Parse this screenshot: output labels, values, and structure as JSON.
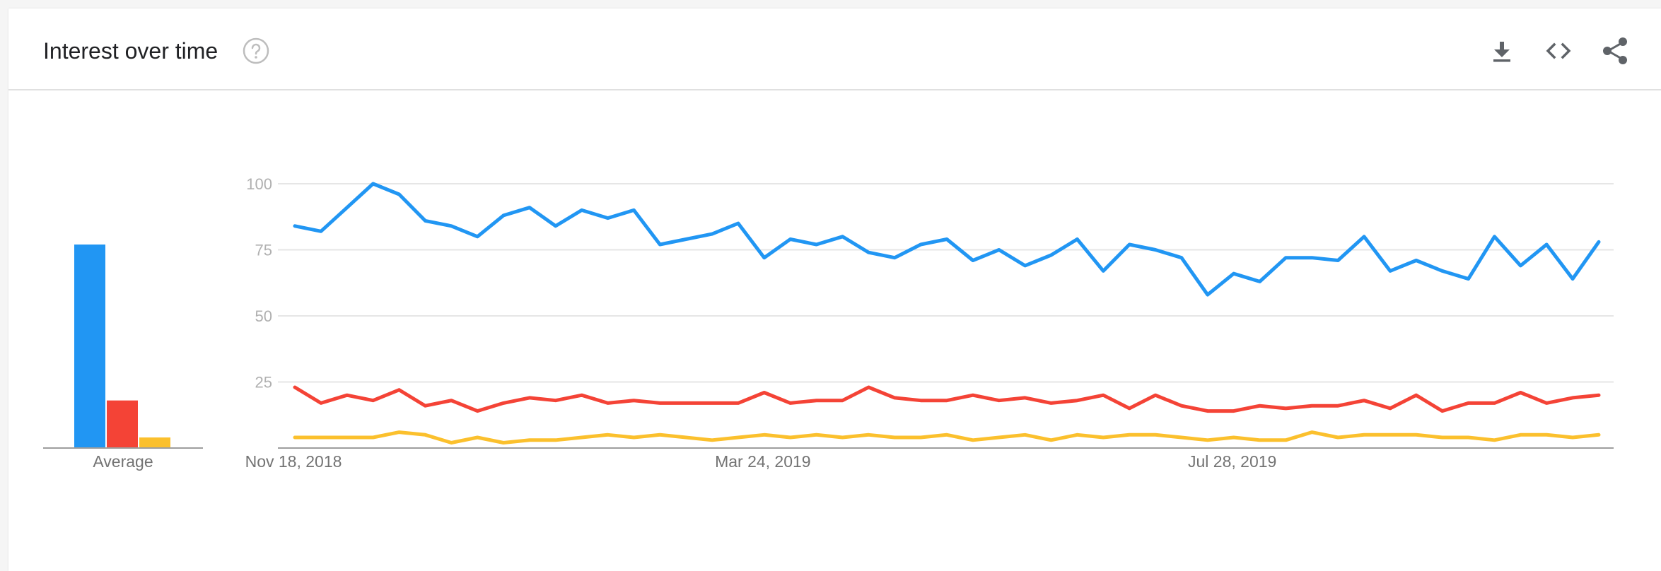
{
  "header": {
    "title": "Interest over time",
    "help_icon": "help-circle-icon",
    "actions": [
      {
        "name": "download-button",
        "icon": "download-icon"
      },
      {
        "name": "embed-button",
        "icon": "code-icon"
      },
      {
        "name": "share-button",
        "icon": "share-icon"
      }
    ]
  },
  "chart_data": {
    "type": "line",
    "yticks": [
      25,
      50,
      75,
      100
    ],
    "ylim": [
      0,
      100
    ],
    "xtick_labels": [
      "Nov 18, 2018",
      "Mar 24, 2019",
      "Jul 28, 2019"
    ],
    "grid": true,
    "series": [
      {
        "color": "#2196f3",
        "values": [
          84,
          82,
          91,
          100,
          96,
          86,
          84,
          80,
          88,
          91,
          84,
          90,
          87,
          90,
          77,
          79,
          81,
          85,
          72,
          79,
          77,
          80,
          74,
          72,
          77,
          79,
          71,
          75,
          69,
          73,
          79,
          67,
          77,
          75,
          72,
          58,
          66,
          63,
          72,
          72,
          71,
          80,
          67,
          71,
          67,
          64,
          80,
          69,
          77,
          64,
          78
        ]
      },
      {
        "color": "#f44336",
        "values": [
          23,
          17,
          20,
          18,
          22,
          16,
          18,
          14,
          17,
          19,
          18,
          20,
          17,
          18,
          17,
          17,
          17,
          17,
          21,
          17,
          18,
          18,
          23,
          19,
          18,
          18,
          20,
          18,
          19,
          17,
          18,
          20,
          15,
          20,
          16,
          14,
          14,
          16,
          15,
          16,
          16,
          18,
          15,
          20,
          14,
          17,
          17,
          21,
          17,
          19,
          20
        ]
      },
      {
        "color": "#fbc02d",
        "values": [
          4,
          4,
          4,
          4,
          6,
          5,
          2,
          4,
          2,
          3,
          3,
          4,
          5,
          4,
          5,
          4,
          3,
          4,
          5,
          4,
          5,
          4,
          5,
          4,
          4,
          5,
          3,
          4,
          5,
          3,
          5,
          4,
          5,
          5,
          4,
          3,
          4,
          3,
          3,
          6,
          4,
          5,
          5,
          5,
          4,
          4,
          3,
          5,
          5,
          4,
          5
        ]
      }
    ],
    "averages": {
      "label": "Average",
      "values": [
        77,
        18,
        4
      ]
    }
  }
}
